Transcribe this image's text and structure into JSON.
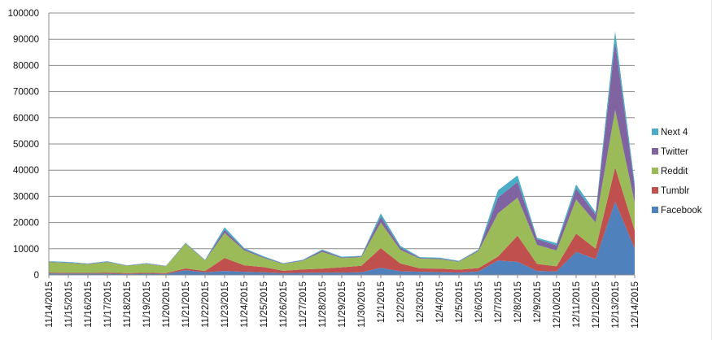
{
  "chart_data": {
    "type": "area",
    "stacked": true,
    "x": [
      "11/14/2015",
      "11/15/2015",
      "11/16/2015",
      "11/17/2015",
      "11/18/2015",
      "11/19/2015",
      "11/20/2015",
      "11/21/2015",
      "11/22/2015",
      "11/23/2015",
      "11/24/2015",
      "11/25/2015",
      "11/26/2015",
      "11/27/2015",
      "11/28/2015",
      "11/29/2015",
      "11/30/2015",
      "12/1/2015",
      "12/2/2015",
      "12/3/2015",
      "12/4/2015",
      "12/5/2015",
      "12/6/2015",
      "12/7/2015",
      "12/8/2015",
      "12/9/2015",
      "12/10/2015",
      "12/11/2015",
      "12/12/2015",
      "12/13/2015",
      "12/14/2015"
    ],
    "series": [
      {
        "name": "Facebook",
        "color": "#4f81bd",
        "values": [
          600,
          500,
          500,
          500,
          400,
          500,
          400,
          1800,
          1000,
          1500,
          1200,
          1000,
          700,
          800,
          900,
          900,
          1000,
          2700,
          1400,
          1200,
          1100,
          900,
          1300,
          5500,
          5000,
          1500,
          1300,
          8800,
          6000,
          28000,
          10000
        ]
      },
      {
        "name": "Tumblr",
        "color": "#c0504d",
        "values": [
          300,
          300,
          300,
          400,
          300,
          300,
          300,
          700,
          500,
          5000,
          2500,
          2000,
          900,
          1300,
          1500,
          2000,
          2500,
          7500,
          3000,
          1300,
          1300,
          1100,
          1300,
          1500,
          10000,
          2700,
          2000,
          7000,
          4000,
          13000,
          7000
        ]
      },
      {
        "name": "Reddit",
        "color": "#9bbb59",
        "values": [
          4000,
          3800,
          3300,
          4000,
          2800,
          3400,
          2600,
          9400,
          4000,
          9500,
          5700,
          3500,
          2600,
          3300,
          6400,
          3500,
          3300,
          9800,
          5200,
          3700,
          3600,
          3000,
          6500,
          16500,
          14500,
          7300,
          6000,
          13000,
          10000,
          22000,
          10500
        ]
      },
      {
        "name": "Twitter",
        "color": "#8064a2",
        "values": [
          150,
          150,
          150,
          150,
          100,
          150,
          100,
          200,
          150,
          1200,
          500,
          300,
          150,
          200,
          600,
          250,
          250,
          2200,
          900,
          300,
          300,
          200,
          300,
          6000,
          6000,
          2200,
          2000,
          4200,
          3000,
          26000,
          6000
        ]
      },
      {
        "name": "Next 4",
        "color": "#4bacc6",
        "values": [
          200,
          200,
          150,
          200,
          100,
          150,
          100,
          200,
          150,
          1000,
          400,
          300,
          150,
          200,
          300,
          300,
          250,
          1300,
          600,
          300,
          300,
          200,
          300,
          2800,
          2500,
          500,
          800,
          1500,
          900,
          4000,
          1500
        ]
      }
    ],
    "ylim": [
      0,
      100000
    ],
    "yticks": [
      "0",
      "10000",
      "20000",
      "30000",
      "40000",
      "50000",
      "60000",
      "70000",
      "80000",
      "90000",
      "100000"
    ],
    "grid": true,
    "legend_position": "right",
    "title": "",
    "xlabel": "",
    "ylabel": ""
  }
}
